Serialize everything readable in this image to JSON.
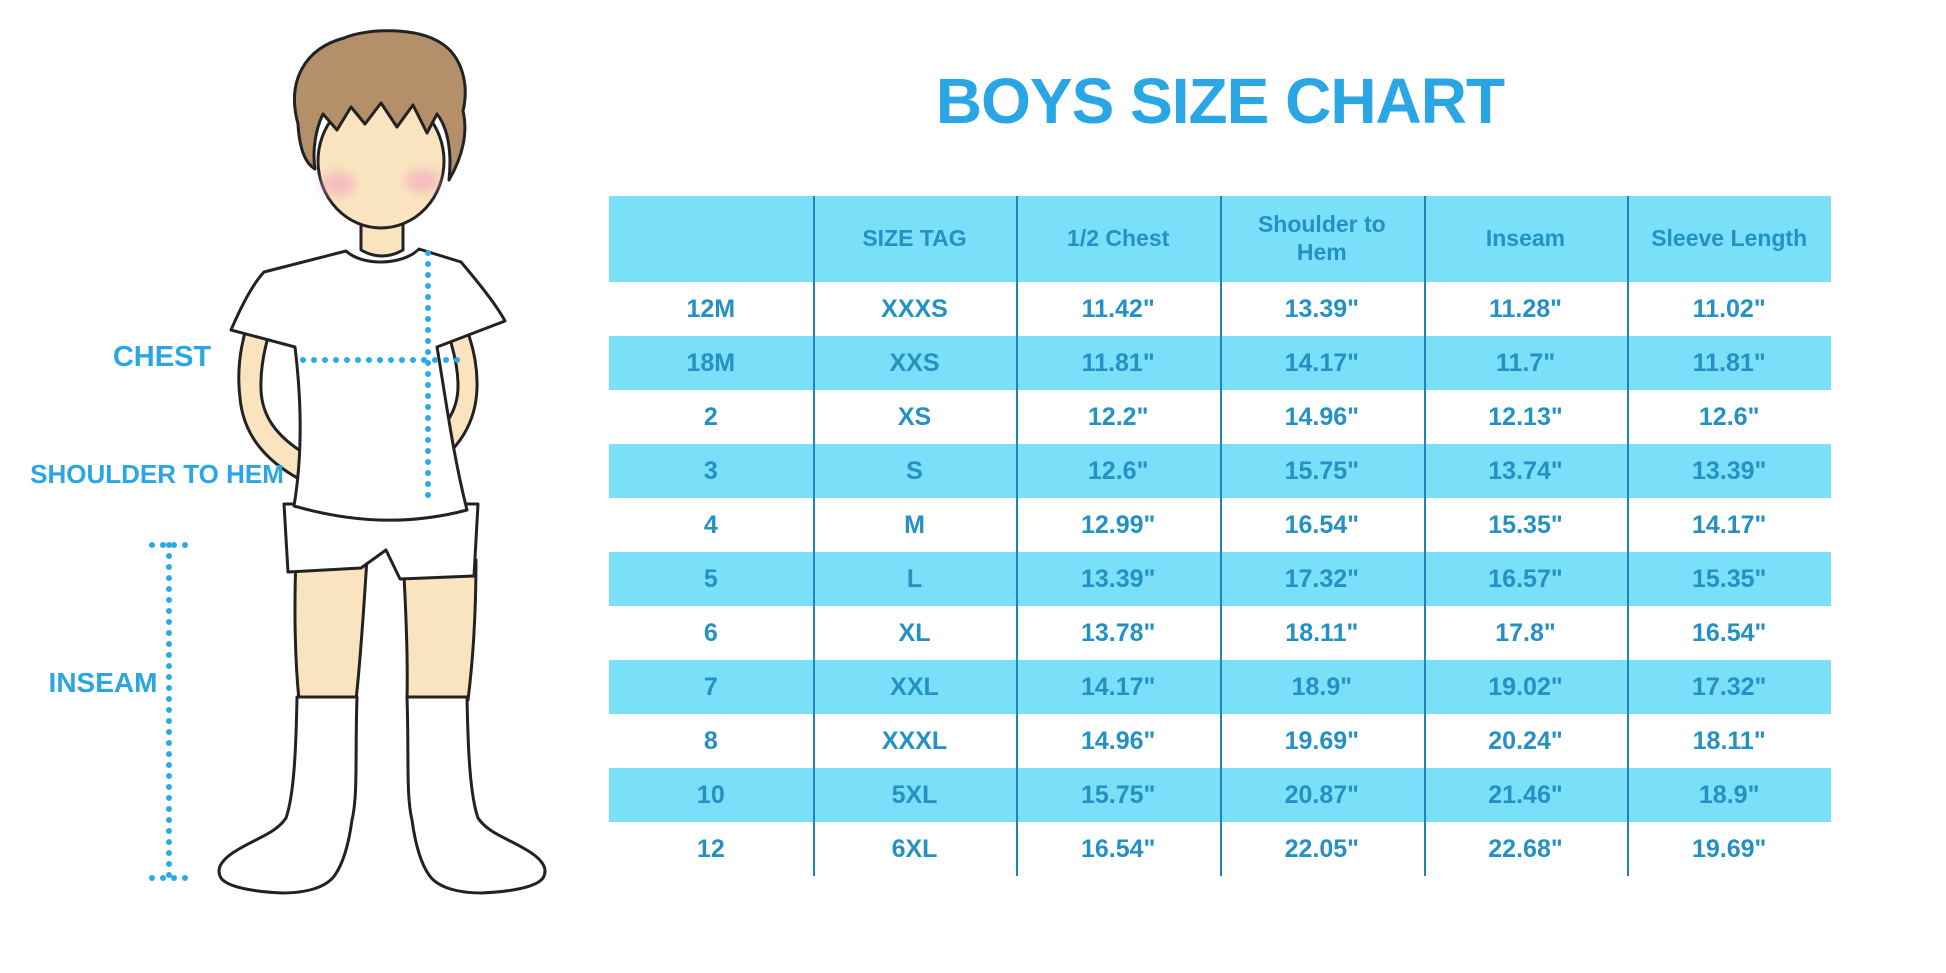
{
  "page": {
    "title": "BOYS SIZE CHART"
  },
  "colors": {
    "title_blue": "#29a6e3",
    "table_text": "#2491c5",
    "row_band": "#7adff8",
    "divider": "#1f85b8",
    "dotted_line": "#2ba9e8",
    "skin": "#f9e4bf",
    "hair": "#b3906a",
    "blush": "#f2a9be",
    "outline": "#222222"
  },
  "figure": {
    "labels": {
      "chest": "CHEST",
      "shoulder_to_hem": "SHOULDER TO HEM",
      "inseam": "INSEAM"
    }
  },
  "chart_data": {
    "type": "table",
    "title": "BOYS SIZE CHART",
    "columns": [
      "",
      "SIZE TAG",
      "1/2 Chest",
      "Shoulder to Hem",
      "Inseam",
      "Sleeve Length"
    ],
    "rows": [
      [
        "12M",
        "XXXS",
        "11.42\"",
        "13.39\"",
        "11.28\"",
        "11.02\""
      ],
      [
        "18M",
        "XXS",
        "11.81\"",
        "14.17\"",
        "11.7\"",
        "11.81\""
      ],
      [
        "2",
        "XS",
        "12.2\"",
        "14.96\"",
        "12.13\"",
        "12.6\""
      ],
      [
        "3",
        "S",
        "12.6\"",
        "15.75\"",
        "13.74\"",
        "13.39\""
      ],
      [
        "4",
        "M",
        "12.99\"",
        "16.54\"",
        "15.35\"",
        "14.17\""
      ],
      [
        "5",
        "L",
        "13.39\"",
        "17.32\"",
        "16.57\"",
        "15.35\""
      ],
      [
        "6",
        "XL",
        "13.78\"",
        "18.11\"",
        "17.8\"",
        "16.54\""
      ],
      [
        "7",
        "XXL",
        "14.17\"",
        "18.9\"",
        "19.02\"",
        "17.32\""
      ],
      [
        "8",
        "XXXL",
        "14.96\"",
        "19.69\"",
        "20.24\"",
        "18.11\""
      ],
      [
        "10",
        "5XL",
        "15.75\"",
        "20.87\"",
        "21.46\"",
        "18.9\""
      ],
      [
        "12",
        "6XL",
        "16.54\"",
        "22.05\"",
        "22.68\"",
        "19.69\""
      ]
    ]
  }
}
